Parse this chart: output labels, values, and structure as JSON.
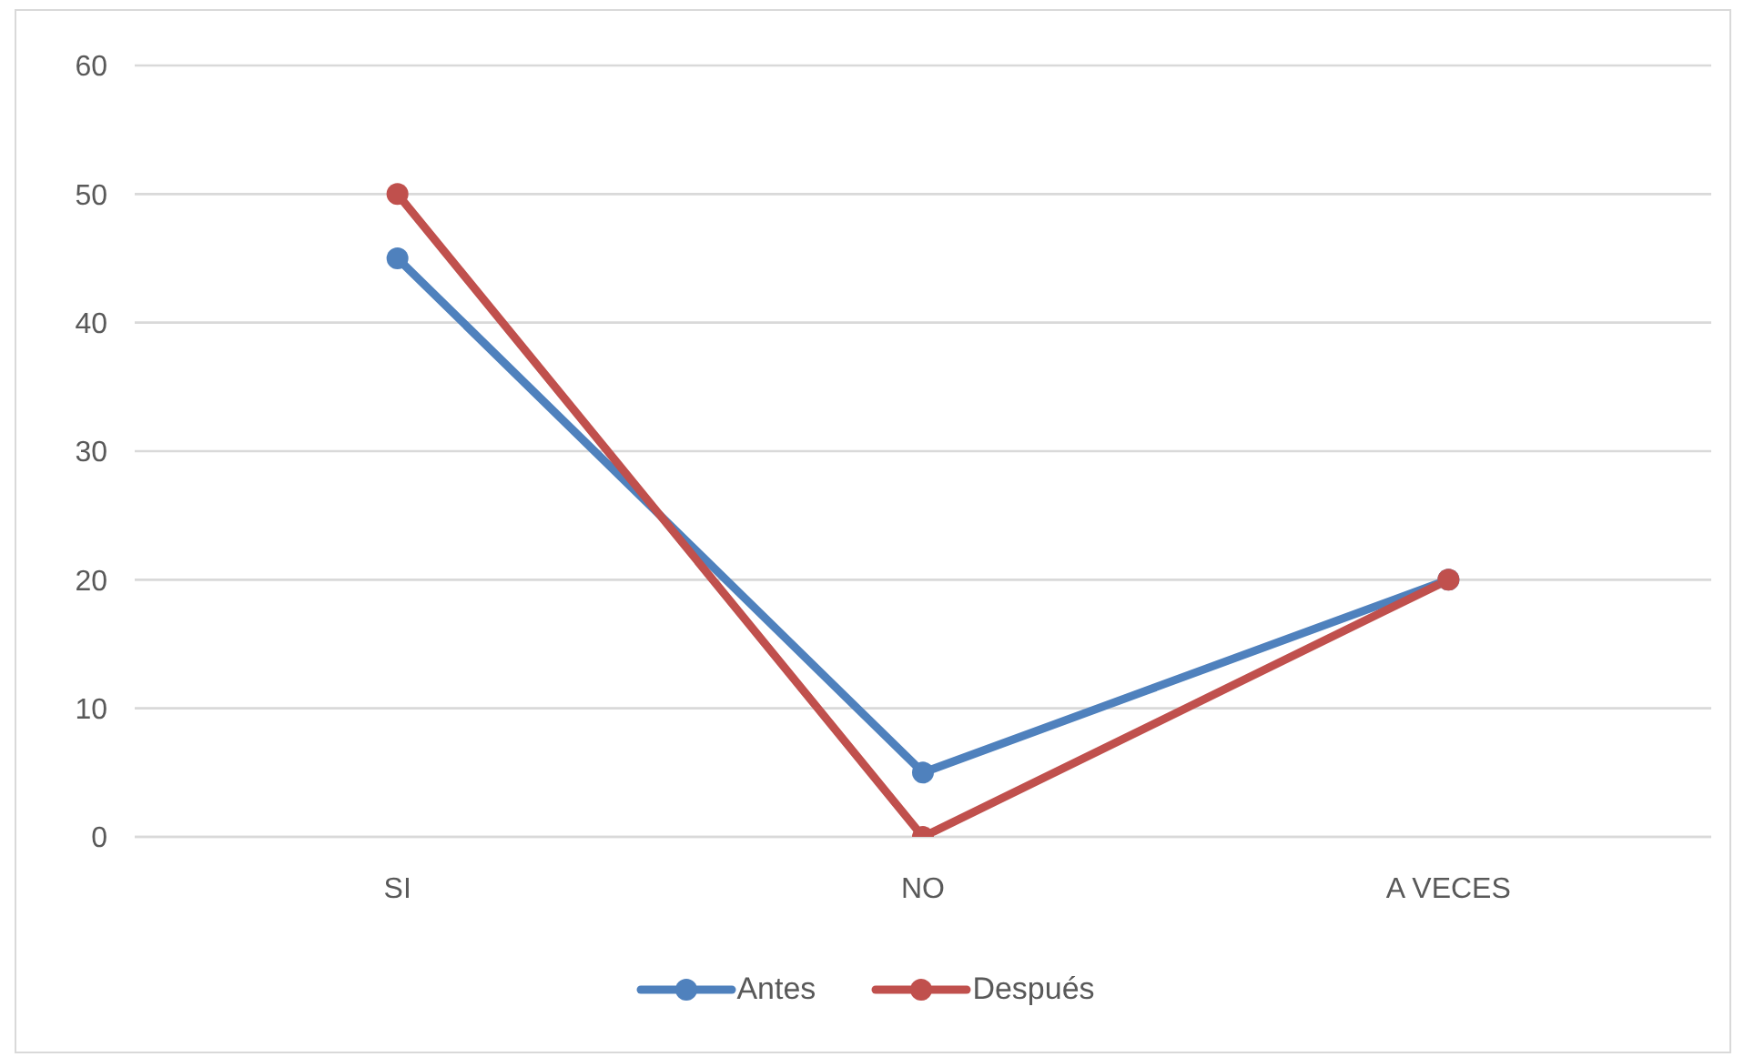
{
  "chart_data": {
    "type": "line",
    "categories": [
      "SI",
      "NO",
      "A VECES"
    ],
    "series": [
      {
        "name": "Antes",
        "color": "#4f81bd",
        "values": [
          45,
          5,
          20
        ]
      },
      {
        "name": "Después",
        "color": "#c0504d",
        "values": [
          50,
          0,
          20
        ]
      }
    ],
    "ylim": [
      0,
      60
    ],
    "yticks": [
      0,
      10,
      20,
      30,
      40,
      50,
      60
    ],
    "grid": "y",
    "legend": "bottom",
    "marker": "circle",
    "line_style": "solid"
  }
}
